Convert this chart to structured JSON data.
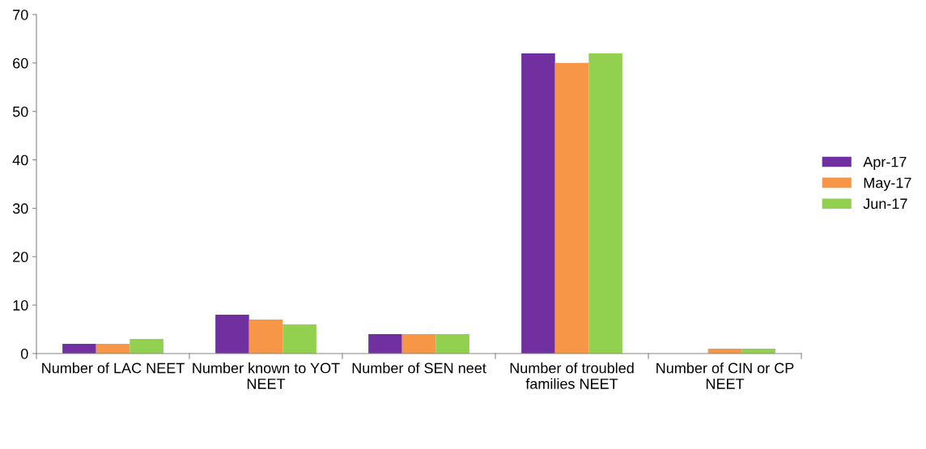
{
  "chart_data": {
    "type": "bar",
    "categories": [
      "Number of LAC NEET",
      "Number known to YOT NEET",
      "Number of SEN neet",
      "Number of troubled families NEET",
      "Number of CIN or CP NEET"
    ],
    "series": [
      {
        "name": "Apr-17",
        "color": "#7030a0",
        "values": [
          2,
          8,
          4,
          62,
          0
        ]
      },
      {
        "name": "May-17",
        "color": "#f79646",
        "values": [
          2,
          7,
          4,
          60,
          1
        ]
      },
      {
        "name": "Jun-17",
        "color": "#92d050",
        "values": [
          3,
          6,
          4,
          62,
          1
        ]
      }
    ],
    "ylim": [
      0,
      70
    ],
    "yticks": [
      0,
      10,
      20,
      30,
      40,
      50,
      60,
      70
    ],
    "grid": false,
    "legend": "right"
  }
}
